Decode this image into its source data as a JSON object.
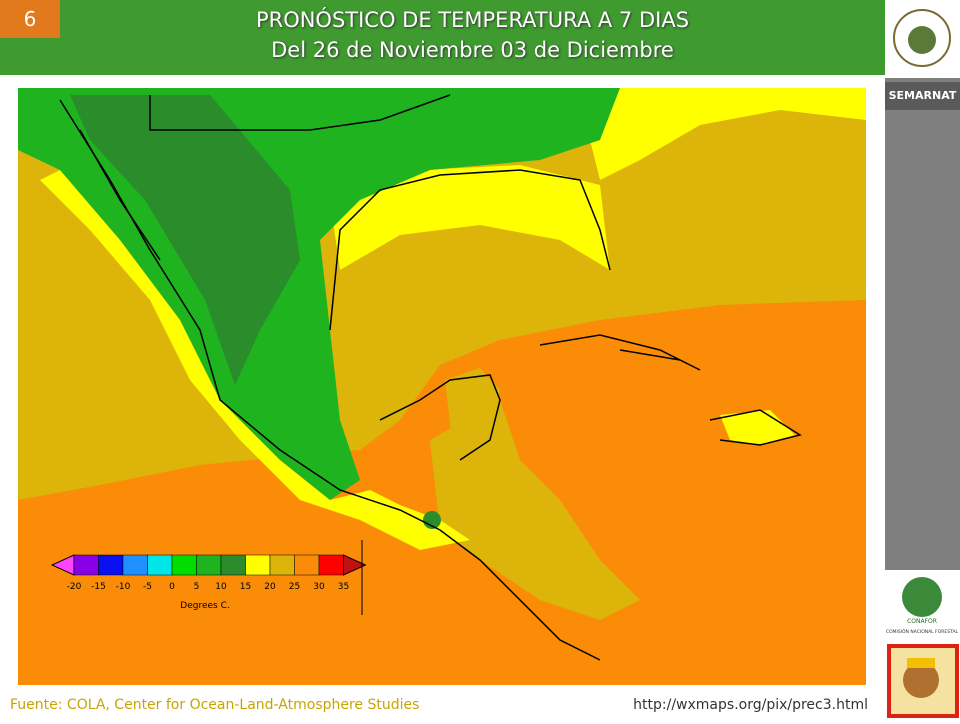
{
  "slide_number": "6",
  "header": {
    "title": "PRONÓSTICO DE TEMPERATURA A 7 DIAS",
    "subtitle": "Del 26 de Noviembre 03 de Diciembre"
  },
  "sidebar": {
    "agency": "SEMARNAT",
    "logo_name": "CONAFOR",
    "logo_caption": "COMISIÓN NACIONAL FORESTAL"
  },
  "legend": {
    "labels": [
      "-20",
      "-15",
      "-10",
      "-5",
      "0",
      "5",
      "10",
      "15",
      "20",
      "25",
      "30",
      "35"
    ],
    "caption": "Degrees C."
  },
  "footer": {
    "source": "Fuente: COLA, Center  for Ocean-Land-Atmosphere Studies",
    "url": "http://wxmaps.org/pix/prec3.html"
  }
}
